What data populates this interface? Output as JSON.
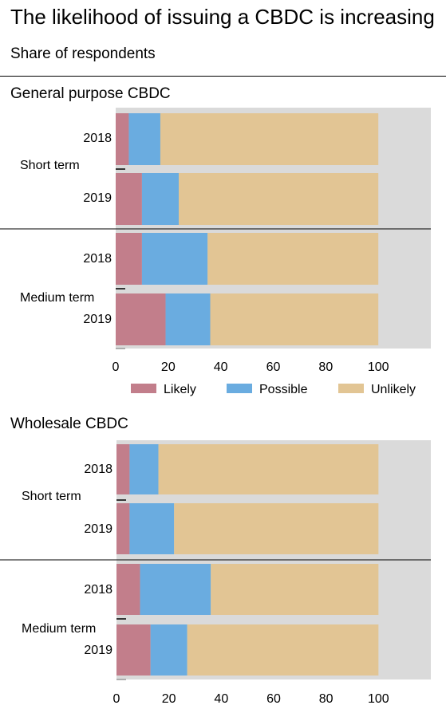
{
  "title": "The likelihood of issuing a CBDC is increasing",
  "subtitle": "Share of respondents",
  "colors": {
    "Likely": "#c27e8b",
    "Possible": "#6aace0",
    "Unlikely": "#e2c594",
    "plot_bg": "#dadada"
  },
  "chart_data": [
    {
      "type": "bar",
      "orientation": "horizontal",
      "stacked": true,
      "title": "General purpose CBDC",
      "groups": [
        "Short term",
        "Medium term"
      ],
      "categories": [
        "2018",
        "2019",
        "2018",
        "2019"
      ],
      "category_groups": [
        "Short term",
        "Short term",
        "Medium term",
        "Medium term"
      ],
      "series": [
        {
          "name": "Likely",
          "values": [
            5,
            10,
            10,
            19
          ]
        },
        {
          "name": "Possible",
          "values": [
            12,
            14,
            25,
            17
          ]
        },
        {
          "name": "Unlikely",
          "values": [
            83,
            76,
            65,
            64
          ]
        }
      ],
      "xlim": [
        0,
        120
      ],
      "xticks": [
        0,
        20,
        40,
        60,
        80,
        100
      ],
      "legend": "bottom"
    },
    {
      "type": "bar",
      "orientation": "horizontal",
      "stacked": true,
      "title": "Wholesale CBDC",
      "groups": [
        "Short term",
        "Medium term"
      ],
      "categories": [
        "2018",
        "2019",
        "2018",
        "2019"
      ],
      "category_groups": [
        "Short term",
        "Short term",
        "Medium term",
        "Medium term"
      ],
      "series": [
        {
          "name": "Likely",
          "values": [
            5,
            5,
            9,
            13
          ]
        },
        {
          "name": "Possible",
          "values": [
            11,
            17,
            27,
            14
          ]
        },
        {
          "name": "Unlikely",
          "values": [
            84,
            78,
            64,
            73
          ]
        }
      ],
      "xlim": [
        0,
        120
      ],
      "xticks": [
        0,
        20,
        40,
        60,
        80,
        100
      ]
    }
  ]
}
